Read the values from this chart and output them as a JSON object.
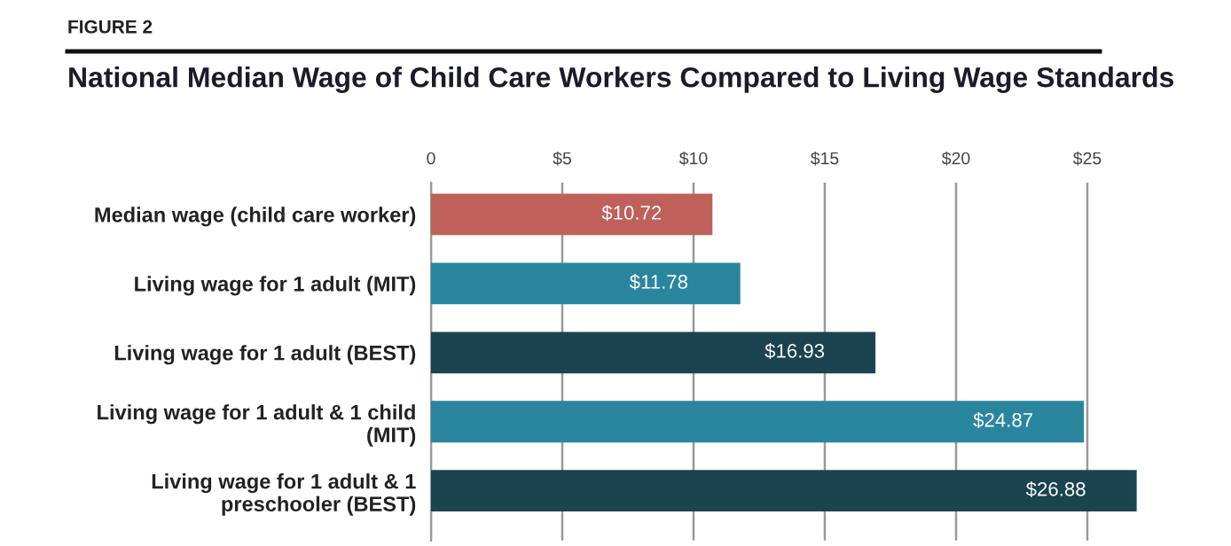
{
  "chart_data": {
    "type": "bar",
    "orientation": "horizontal",
    "title": "National Median Wage of Child Care Workers Compared to Living Wage Standards",
    "annotations": [
      "FIGURE 2"
    ],
    "categories": [
      "Median wage (child care worker)",
      "Living wage for 1 adult (MIT)",
      "Living wage for 1 adult (BEST)",
      "Living wage for 1 adult & 1 child\n(MIT)",
      "Living wage for 1 adult & 1\npreschooler (BEST)"
    ],
    "values": [
      10.72,
      11.78,
      16.93,
      24.87,
      26.88
    ],
    "colors": [
      "#c0605a",
      "#2a869e",
      "#1b4350",
      "#2a869e",
      "#1b4350"
    ],
    "value_labels": [
      "$10.72",
      "$11.78",
      "$16.93",
      "$24.87",
      "$26.88"
    ],
    "xlim": [
      0,
      27
    ],
    "xticks": [
      0,
      {
        "value": 5,
        "label": "$5"
      },
      {
        "value": 10,
        "label": "$10"
      },
      {
        "value": 15,
        "label": "$15"
      },
      {
        "value": 20,
        "label": "$20"
      },
      {
        "value": 25,
        "label": "$25"
      }
    ],
    "grid": "x"
  }
}
